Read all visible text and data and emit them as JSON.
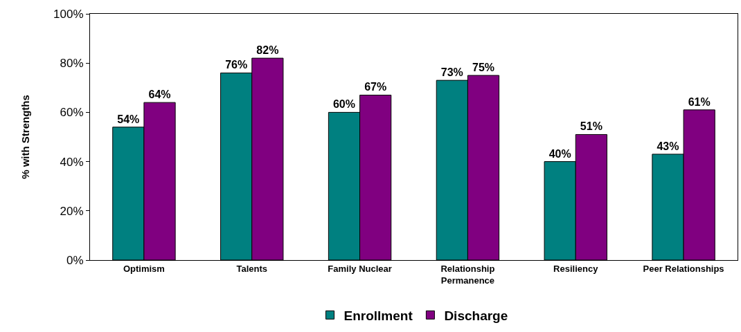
{
  "chart_data": {
    "type": "bar",
    "ylabel": "% with Strengths",
    "categories": [
      "Optimism",
      "Talents",
      "Family Nuclear",
      "Relationship Permanence",
      "Resiliency",
      "Peer Relationships"
    ],
    "series": [
      {
        "name": "Enrollment",
        "color": "#008080",
        "values": [
          54,
          76,
          60,
          73,
          40,
          43
        ],
        "value_labels": [
          "54%",
          "76%",
          "60%",
          "73%",
          "40%",
          "43%"
        ]
      },
      {
        "name": "Discharge",
        "color": "#800080",
        "values": [
          64,
          82,
          67,
          75,
          51,
          61
        ],
        "value_labels": [
          "64%",
          "82%",
          "67%",
          "75%",
          "51%",
          "61%"
        ]
      }
    ],
    "ylim": [
      0,
      100
    ],
    "yticks": [
      {
        "value": 0,
        "label": "0%"
      },
      {
        "value": 20,
        "label": "20%"
      },
      {
        "value": 40,
        "label": "40%"
      },
      {
        "value": 60,
        "label": "60%"
      },
      {
        "value": 80,
        "label": "80%"
      },
      {
        "value": 100,
        "label": "100%"
      }
    ],
    "grid": false,
    "legend": "bottom"
  }
}
